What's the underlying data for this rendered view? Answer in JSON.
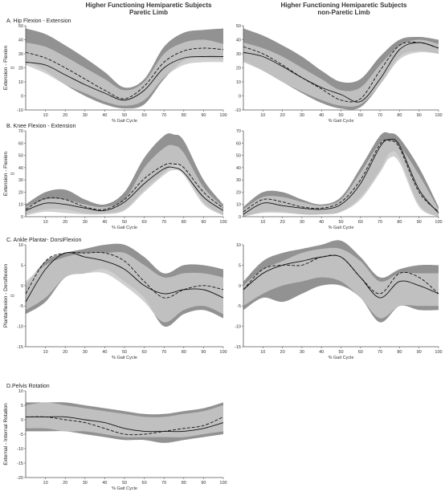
{
  "column_titles": [
    {
      "line1": "Higher Functioning Hemiparetic Subjects",
      "line2": "Paretic Limb"
    },
    {
      "line1": "Higher Functioning Hemiparetic Subjects",
      "line2": "non-Paretic Limb"
    }
  ],
  "colors": {
    "band_dark": "#8c8c8c",
    "band_light": "#c8c8c8",
    "band_mid": "#a6a6a6",
    "line": "#111111",
    "axis": "#555555"
  },
  "chart_data": [
    {
      "id": "hip-paretic",
      "type": "area",
      "panel_label": "A. Hip Flexion - Extension",
      "ylabel": "Extension - Flexion",
      "yunit": "()",
      "xlabel": "% Gait Cycle",
      "xlim": [
        0,
        100
      ],
      "ylim": [
        -10,
        50
      ],
      "yticks": [
        -10,
        0,
        10,
        20,
        30,
        40,
        50
      ],
      "xticks": [
        10,
        20,
        30,
        40,
        50,
        60,
        70,
        80,
        90,
        100
      ],
      "x": [
        0,
        10,
        20,
        30,
        40,
        50,
        60,
        70,
        80,
        90,
        100
      ],
      "bands": [
        {
          "shade": "dark",
          "upper": [
            48,
            44,
            36,
            27,
            17,
            6,
            12,
            35,
            45,
            47,
            48
          ],
          "lower": [
            25,
            18,
            8,
            0,
            -6,
            -9,
            -6,
            12,
            25,
            27,
            26
          ]
        },
        {
          "shade": "light",
          "upper": [
            38,
            35,
            28,
            20,
            12,
            4,
            10,
            30,
            38,
            40,
            37
          ],
          "lower": [
            22,
            16,
            8,
            2,
            -4,
            -7,
            -3,
            13,
            22,
            24,
            24
          ]
        }
      ],
      "series": [
        {
          "style": "solid",
          "values": [
            24,
            22,
            15,
            8,
            2,
            -3,
            4,
            20,
            27,
            28,
            28
          ]
        },
        {
          "style": "dashed",
          "values": [
            31,
            27,
            20,
            12,
            4,
            -2,
            7,
            24,
            32,
            34,
            33
          ]
        }
      ]
    },
    {
      "id": "hip-nonparetic",
      "type": "area",
      "panel_label": "",
      "ylabel": "",
      "yunit": "",
      "xlabel": "% Gait Cycle",
      "xlim": [
        0,
        100
      ],
      "ylim": [
        -10,
        50
      ],
      "yticks": [
        -10,
        0,
        10,
        20,
        30,
        40,
        50
      ],
      "xticks": [
        10,
        20,
        30,
        40,
        50,
        60,
        70,
        80,
        90,
        100
      ],
      "x": [
        0,
        10,
        20,
        30,
        40,
        50,
        60,
        70,
        80,
        90,
        100
      ],
      "bands": [
        {
          "shade": "dark",
          "upper": [
            48,
            43,
            36,
            28,
            18,
            10,
            12,
            28,
            40,
            42,
            40
          ],
          "lower": [
            25,
            18,
            10,
            2,
            -5,
            -9,
            -8,
            8,
            28,
            32,
            30
          ]
        },
        {
          "shade": "light",
          "upper": [
            38,
            34,
            28,
            20,
            12,
            4,
            6,
            22,
            36,
            40,
            37
          ],
          "lower": [
            24,
            18,
            10,
            3,
            -3,
            -7,
            -6,
            8,
            26,
            31,
            30
          ]
        }
      ],
      "series": [
        {
          "style": "solid",
          "values": [
            31,
            28,
            21,
            13,
            6,
            1,
            -4,
            12,
            33,
            38,
            34
          ]
        },
        {
          "style": "dashed",
          "values": [
            35,
            30,
            22,
            13,
            5,
            -3,
            -2,
            18,
            36,
            38,
            34
          ]
        }
      ]
    },
    {
      "id": "knee-paretic",
      "type": "area",
      "panel_label": "B. Knee Flexion - Extension",
      "ylabel": "Extension - Flexion",
      "yunit": "()",
      "xlabel": "% Gait Cycle",
      "xlim": [
        0,
        100
      ],
      "ylim": [
        0,
        70
      ],
      "yticks": [
        0,
        10,
        20,
        30,
        40,
        50,
        60,
        70
      ],
      "xticks": [
        10,
        20,
        30,
        40,
        50,
        60,
        70,
        80,
        90,
        100
      ],
      "x": [
        0,
        10,
        20,
        30,
        40,
        50,
        60,
        70,
        75,
        80,
        90,
        100
      ],
      "bands": [
        {
          "shade": "dark",
          "upper": [
            10,
            20,
            22,
            14,
            10,
            20,
            48,
            66,
            67,
            62,
            30,
            10
          ],
          "lower": [
            2,
            6,
            6,
            3,
            3,
            6,
            22,
            36,
            42,
            38,
            12,
            1
          ]
        },
        {
          "shade": "light",
          "upper": [
            8,
            14,
            14,
            10,
            8,
            14,
            40,
            56,
            58,
            52,
            24,
            8
          ],
          "lower": [
            1,
            4,
            3,
            2,
            2,
            5,
            20,
            34,
            38,
            34,
            10,
            1
          ]
        }
      ],
      "series": [
        {
          "style": "solid",
          "values": [
            5,
            11,
            10,
            7,
            5,
            12,
            27,
            39,
            40,
            36,
            16,
            5
          ]
        },
        {
          "style": "dashed",
          "values": [
            6,
            15,
            14,
            8,
            6,
            14,
            31,
            42,
            43,
            40,
            20,
            7
          ]
        }
      ]
    },
    {
      "id": "knee-nonparetic",
      "type": "area",
      "panel_label": "",
      "ylabel": "",
      "yunit": "",
      "xlabel": "% Gait Cycle",
      "xlim": [
        0,
        100
      ],
      "ylim": [
        0,
        70
      ],
      "yticks": [
        0,
        10,
        20,
        30,
        40,
        50,
        60,
        70
      ],
      "xticks": [
        10,
        20,
        30,
        40,
        50,
        60,
        70,
        80,
        90,
        100
      ],
      "x": [
        0,
        10,
        20,
        30,
        40,
        50,
        60,
        70,
        75,
        80,
        90,
        100
      ],
      "bands": [
        {
          "shade": "dark",
          "upper": [
            8,
            20,
            20,
            14,
            10,
            16,
            40,
            66,
            68,
            64,
            40,
            8
          ],
          "lower": [
            0,
            4,
            4,
            2,
            2,
            4,
            16,
            38,
            52,
            48,
            10,
            0
          ]
        },
        {
          "shade": "light",
          "upper": [
            6,
            16,
            16,
            12,
            9,
            14,
            36,
            60,
            62,
            58,
            34,
            6
          ],
          "lower": [
            0,
            3,
            3,
            2,
            2,
            4,
            14,
            36,
            48,
            44,
            8,
            0
          ]
        }
      ],
      "series": [
        {
          "style": "solid",
          "values": [
            2,
            11,
            9,
            7,
            6,
            10,
            27,
            57,
            63,
            58,
            22,
            3
          ]
        },
        {
          "style": "dashed",
          "values": [
            4,
            14,
            12,
            8,
            7,
            12,
            30,
            59,
            62,
            56,
            20,
            4
          ]
        }
      ]
    },
    {
      "id": "ankle-paretic",
      "type": "area",
      "panel_label": "C. Ankle Plantar- DorsiFlexion",
      "ylabel": "Plantarflexion - Dorsiflexion",
      "yunit": "()",
      "xlabel": "% Gait Cycle",
      "xlim": [
        0,
        100
      ],
      "ylim": [
        -15,
        10
      ],
      "yticks": [
        -15,
        -10,
        -5,
        0,
        5,
        10
      ],
      "xticks": [
        10,
        20,
        30,
        40,
        50,
        60,
        70,
        80,
        90,
        100
      ],
      "x": [
        0,
        10,
        20,
        30,
        40,
        50,
        60,
        70,
        80,
        90,
        100
      ],
      "bands": [
        {
          "shade": "dark",
          "upper": [
            0,
            6,
            8,
            9,
            10,
            10,
            7,
            3,
            5,
            5,
            4
          ],
          "lower": [
            -7,
            -4,
            2,
            3,
            4,
            1,
            -3,
            -10,
            -7,
            -6,
            -8
          ]
        },
        {
          "shade": "light",
          "upper": [
            1,
            5,
            7,
            8,
            8,
            8,
            5,
            2,
            3,
            3,
            2
          ],
          "lower": [
            -6,
            -3,
            2,
            3,
            3,
            0,
            -4,
            -9,
            -6,
            -5,
            -7
          ]
        }
      ],
      "series": [
        {
          "style": "solid",
          "values": [
            -4,
            4,
            8,
            7,
            6,
            4,
            0,
            -2,
            -1,
            -1,
            -3
          ]
        },
        {
          "style": "dashed",
          "values": [
            -2,
            6,
            8,
            8,
            8,
            6,
            1,
            -3,
            -1,
            0,
            -1
          ]
        }
      ]
    },
    {
      "id": "ankle-nonparetic",
      "type": "area",
      "panel_label": "",
      "ylabel": "",
      "yunit": "",
      "xlabel": "% Gait Cycle",
      "xlim": [
        0,
        100
      ],
      "ylim": [
        -15,
        10
      ],
      "yticks": [
        -15,
        -10,
        -5,
        0,
        5,
        10
      ],
      "xticks": [
        10,
        20,
        30,
        40,
        50,
        60,
        70,
        80,
        90,
        100
      ],
      "x": [
        0,
        10,
        20,
        30,
        40,
        50,
        60,
        70,
        80,
        90,
        100
      ],
      "bands": [
        {
          "shade": "dark",
          "upper": [
            1,
            6,
            8,
            9,
            10,
            11,
            7,
            2,
            4,
            5,
            5
          ],
          "lower": [
            -6,
            -3,
            -4,
            -2,
            0,
            0,
            -3,
            -9,
            -5,
            -6,
            -6
          ]
        },
        {
          "shade": "light",
          "upper": [
            0,
            4,
            6,
            8,
            9,
            9,
            6,
            1,
            3,
            3,
            3
          ],
          "lower": [
            -5,
            -2,
            0,
            1,
            2,
            1,
            -3,
            -8,
            -5,
            -5,
            -5
          ]
        }
      ],
      "series": [
        {
          "style": "solid",
          "values": [
            -1,
            3,
            5,
            6,
            7,
            7,
            2,
            -3,
            1,
            0,
            -2
          ]
        },
        {
          "style": "dashed",
          "values": [
            -1,
            4,
            5,
            5,
            7,
            7,
            2,
            -2,
            3,
            2,
            -2
          ]
        }
      ]
    },
    {
      "id": "pelvis-paretic",
      "type": "area",
      "panel_label": "D.Pelvis Rotation",
      "ylabel": "External - Internal Rotation",
      "yunit": "",
      "xlabel": "% Gait Cycle",
      "xlim": [
        0,
        100
      ],
      "ylim": [
        -20,
        10
      ],
      "yticks": [
        -20,
        -15,
        -10,
        -5,
        0,
        5,
        10
      ],
      "xticks": [
        10,
        20,
        30,
        40,
        50,
        60,
        70,
        80,
        90,
        100
      ],
      "x": [
        0,
        10,
        20,
        30,
        40,
        50,
        60,
        70,
        80,
        90,
        100
      ],
      "bands": [
        {
          "shade": "dark",
          "upper": [
            6,
            6,
            6,
            5,
            4,
            3,
            2,
            2,
            3,
            4,
            6
          ],
          "lower": [
            -4,
            -4,
            -4,
            -5,
            -6,
            -7,
            -7,
            -8,
            -7,
            -6,
            -5
          ]
        },
        {
          "shade": "light",
          "upper": [
            5,
            6,
            5,
            4,
            3,
            2,
            1,
            1,
            2,
            3,
            5
          ],
          "lower": [
            -3,
            -3,
            -4,
            -4,
            -5,
            -6,
            -6,
            -6,
            -6,
            -5,
            -4
          ]
        }
      ],
      "series": [
        {
          "style": "solid",
          "values": [
            1,
            1,
            1,
            0,
            -1,
            -3,
            -4,
            -4,
            -4,
            -3,
            -1
          ]
        },
        {
          "style": "dashed",
          "values": [
            1,
            1,
            0,
            -1,
            -3,
            -5,
            -5,
            -4,
            -3,
            -2,
            1
          ]
        }
      ]
    }
  ]
}
